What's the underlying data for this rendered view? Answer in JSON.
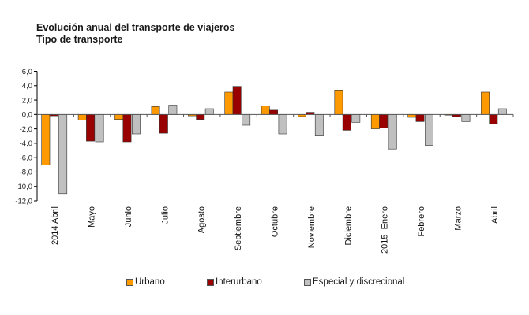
{
  "chart_data": {
    "type": "bar",
    "title": "Evolución anual del transporte de viajeros",
    "subtitle": "Tipo de transporte",
    "xlabel": "",
    "ylabel": "",
    "ylim": [
      -12.0,
      6.0
    ],
    "yticks": [
      "6,0",
      "4,0",
      "2,0",
      "0,0",
      "-2,0",
      "-4,0",
      "-6,0",
      "-8,0",
      "-10,0",
      "-12,0"
    ],
    "ytick_values": [
      6,
      4,
      2,
      0,
      -2,
      -4,
      -6,
      -8,
      -10,
      -12
    ],
    "grid": false,
    "legend_position": "bottom",
    "categories": [
      "2014 Abril",
      "Mayo",
      "Junio",
      "Julio",
      "Agosto",
      "Septiembre",
      "Octubre",
      "Noviembre",
      "Diciembre",
      "2015  Enero",
      "Febrero",
      "Marzo",
      "Abril"
    ],
    "series": [
      {
        "name": "Urbano",
        "color": "#FF9900",
        "values": [
          -7.0,
          -0.8,
          -0.7,
          1.1,
          -0.2,
          3.1,
          1.2,
          -0.3,
          3.4,
          -2.0,
          -0.4,
          -0.1,
          3.1
        ]
      },
      {
        "name": "Interurbano",
        "color": "#990000",
        "values": [
          -0.2,
          -3.7,
          -3.8,
          -2.6,
          -0.7,
          3.9,
          0.6,
          0.3,
          -2.2,
          -1.9,
          -1.0,
          -0.3,
          -1.3
        ]
      },
      {
        "name": "Especial y discrecional",
        "color": "#C0C0C0",
        "values": [
          -11.0,
          -3.8,
          -2.7,
          1.3,
          0.8,
          -1.5,
          -2.7,
          -3.0,
          -1.1,
          -4.8,
          -4.3,
          -1.0,
          0.8
        ]
      }
    ]
  }
}
